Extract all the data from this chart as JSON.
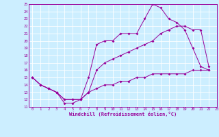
{
  "background_color": "#cceeff",
  "grid_color": "#ffffff",
  "line_color": "#990099",
  "xlabel": "Windchill (Refroidissement éolien,°C)",
  "x_ticks": [
    0,
    1,
    2,
    3,
    4,
    5,
    6,
    7,
    8,
    9,
    10,
    11,
    12,
    13,
    14,
    15,
    16,
    17,
    18,
    19,
    20,
    21,
    22,
    23
  ],
  "ylim": [
    11,
    25
  ],
  "xlim": [
    -0.5,
    23
  ],
  "y_ticks": [
    11,
    12,
    13,
    14,
    15,
    16,
    17,
    18,
    19,
    20,
    21,
    22,
    23,
    24,
    25
  ],
  "line1_x": [
    0,
    1,
    2,
    3,
    4,
    5,
    6,
    7,
    8,
    9,
    10,
    11,
    12,
    13,
    14,
    15,
    16,
    17,
    18,
    19,
    20,
    21,
    22
  ],
  "line1_y": [
    15,
    14,
    13.5,
    13,
    11.5,
    11.5,
    12,
    15,
    19.5,
    20,
    20,
    21,
    21,
    21,
    23,
    25,
    24.5,
    23,
    22.5,
    21.5,
    19,
    16.5,
    16
  ],
  "line2_x": [
    0,
    1,
    2,
    3,
    4,
    5,
    6,
    7,
    8,
    9,
    10,
    11,
    12,
    13,
    14,
    15,
    16,
    17,
    18,
    19,
    20,
    21,
    22
  ],
  "line2_y": [
    15,
    14,
    13.5,
    13,
    12,
    12,
    12,
    13,
    16,
    17,
    17.5,
    18,
    18.5,
    19,
    19.5,
    20,
    21,
    21.5,
    22,
    22,
    21.5,
    21.5,
    16.5
  ],
  "line3_x": [
    0,
    1,
    2,
    3,
    4,
    5,
    6,
    7,
    8,
    9,
    10,
    11,
    12,
    13,
    14,
    15,
    16,
    17,
    18,
    19,
    20,
    21,
    22
  ],
  "line3_y": [
    15,
    14,
    13.5,
    13,
    12,
    12,
    12,
    13,
    13.5,
    14,
    14,
    14.5,
    14.5,
    15,
    15,
    15.5,
    15.5,
    15.5,
    15.5,
    15.5,
    16,
    16,
    16
  ]
}
